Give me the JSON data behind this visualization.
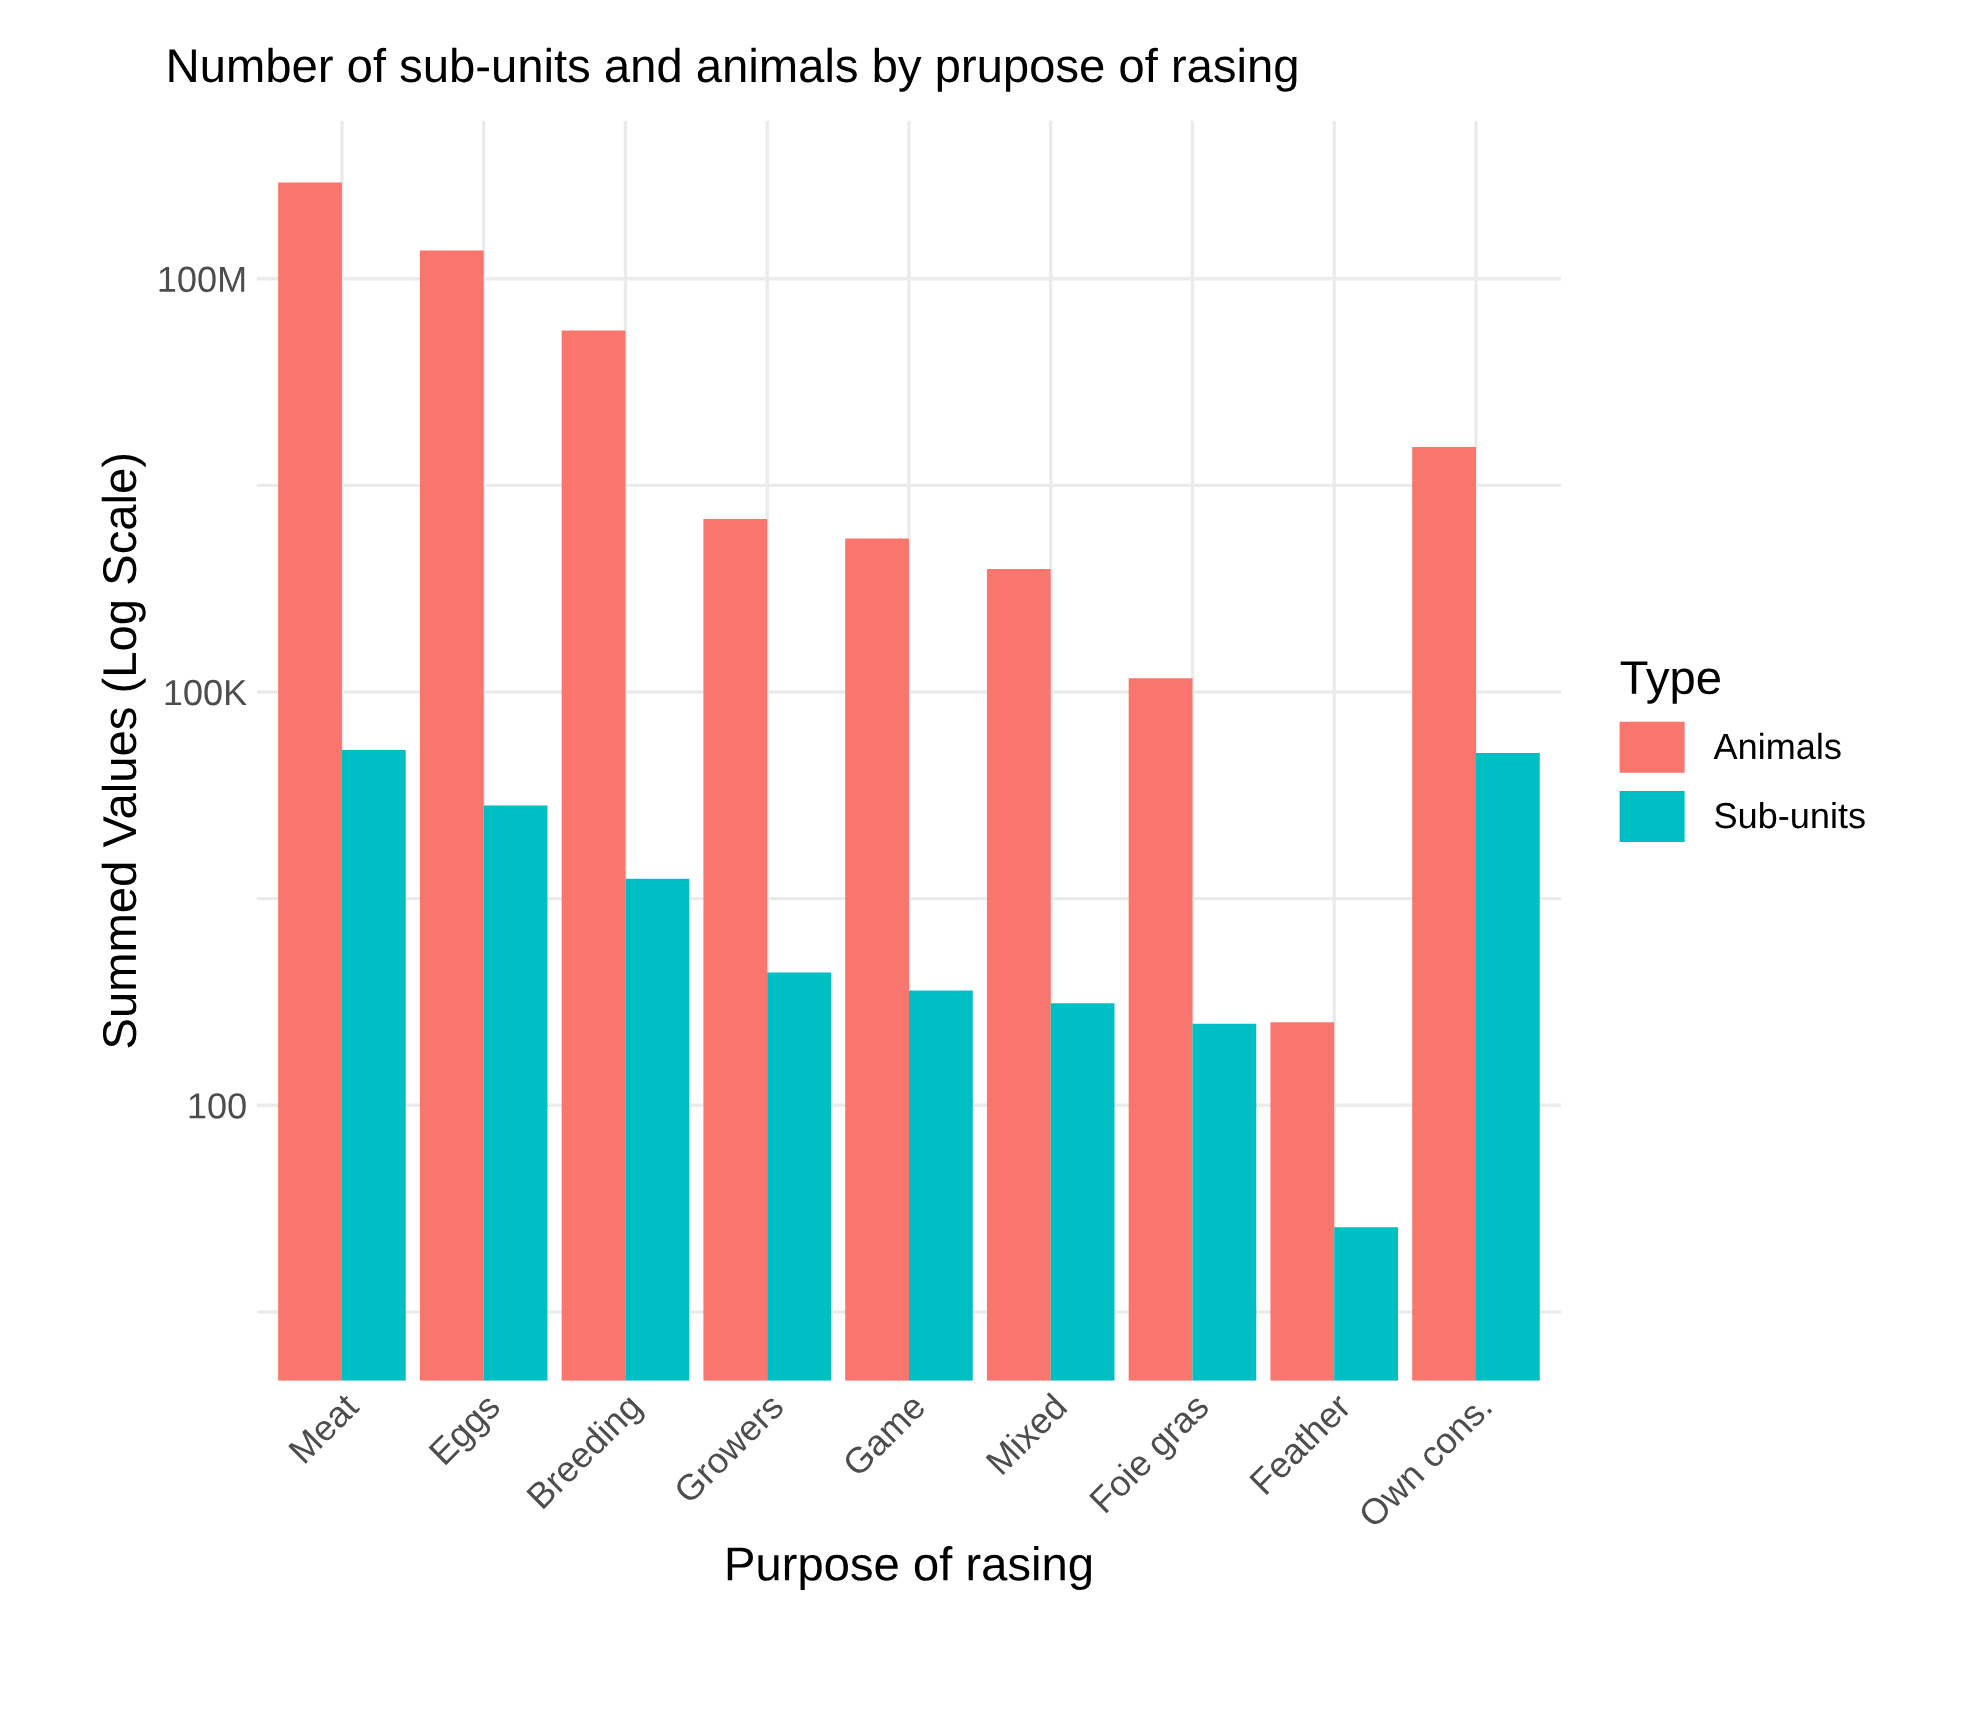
{
  "chart_data": {
    "type": "bar",
    "title": "Number of sub-units and animals by prupose of rasing",
    "xlabel": "Purpose of rasing",
    "ylabel": "Summed Values (Log Scale)",
    "legend_title": "Type",
    "categories": [
      "Meat",
      "Eggs",
      "Breeding",
      "Growers",
      "Game",
      "Mixed",
      "Foie gras",
      "Feather",
      "Own cons."
    ],
    "series": [
      {
        "name": "Animals",
        "color": "#f8766d",
        "values": [
          500000000,
          160000000,
          42000000,
          1800000,
          1300000,
          780000,
          126000,
          400,
          6000000
        ]
      },
      {
        "name": "Sub-units",
        "color": "#00bfc4",
        "values": [
          38000,
          15000,
          4400,
          920,
          680,
          550,
          390,
          12,
          36000
        ]
      }
    ],
    "log": "y",
    "ylim": [
      1,
      1400000000
    ],
    "yticks": [
      {
        "value": 3.16,
        "label": null
      },
      {
        "value": 100,
        "label": "100"
      },
      {
        "value": 3162,
        "label": null
      },
      {
        "value": 100000,
        "label": "100K"
      },
      {
        "value": 3162000,
        "label": null
      },
      {
        "value": 100000000,
        "label": "100M"
      }
    ],
    "grid": true,
    "legend": "right"
  }
}
